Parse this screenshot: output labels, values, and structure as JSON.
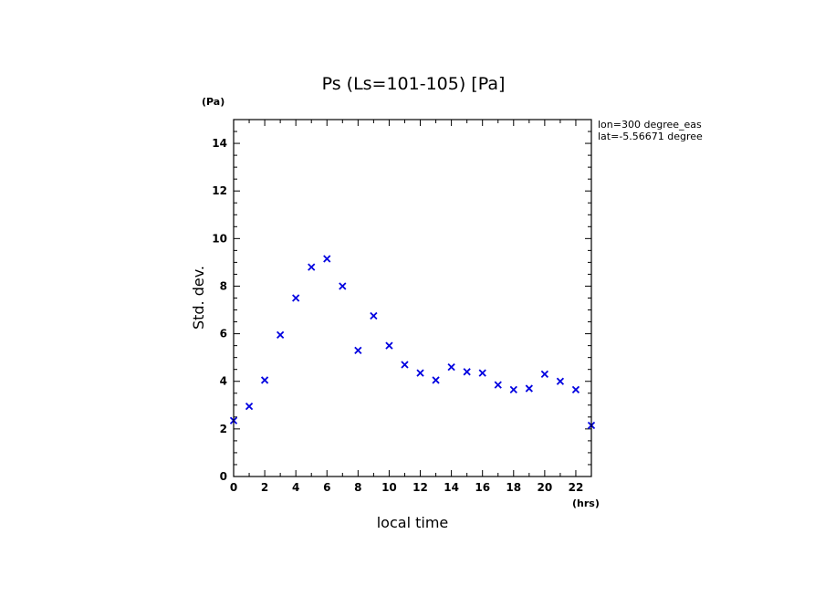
{
  "chart_data": {
    "type": "scatter",
    "title": "Ps (Ls=101-105) [Pa]",
    "xlabel": "local time",
    "ylabel": "Std. dev.",
    "x_unit": "(hrs)",
    "y_unit": "(Pa)",
    "xlim": [
      0,
      23
    ],
    "ylim": [
      0,
      15
    ],
    "x_ticks": [
      0,
      2,
      4,
      6,
      8,
      10,
      12,
      14,
      16,
      18,
      20,
      22
    ],
    "y_ticks": [
      0,
      2,
      4,
      6,
      8,
      10,
      12,
      14
    ],
    "x_tick_labels": [
      "0",
      "2",
      "4",
      "6",
      "8",
      "10",
      "12",
      "14",
      "16",
      "18",
      "20",
      "22"
    ],
    "y_tick_labels": [
      "0",
      "2",
      "4",
      "6",
      "8",
      "10",
      "12",
      "14"
    ],
    "annotations": [
      "lon=300 degree_eas",
      "lat=-5.56671 degree"
    ],
    "marker": "x",
    "marker_color": "#0000e0",
    "series": [
      {
        "x": [
          0,
          1,
          2,
          3,
          4,
          5,
          6,
          7,
          8,
          9,
          10,
          11,
          12,
          13,
          14,
          15,
          16,
          17,
          18,
          19,
          20,
          21,
          22,
          23
        ],
        "y": [
          2.35,
          2.95,
          4.05,
          5.95,
          7.5,
          8.8,
          9.15,
          8.0,
          5.3,
          6.75,
          5.5,
          4.7,
          4.35,
          4.05,
          4.6,
          4.4,
          4.35,
          3.85,
          3.65,
          3.7,
          4.3,
          4.0,
          3.65,
          2.15
        ]
      }
    ]
  }
}
